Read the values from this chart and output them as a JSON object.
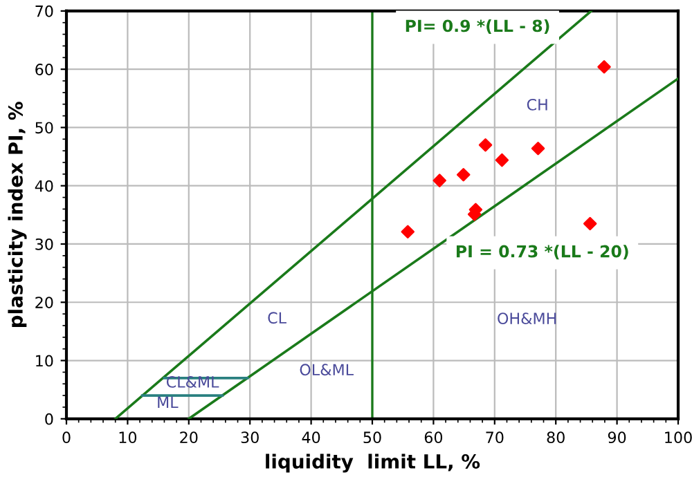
{
  "chart_data": {
    "type": "scatter",
    "xlabel": "liquidity  limit LL, %",
    "ylabel": "plasticity index PI, %",
    "xlim": [
      0,
      100
    ],
    "ylim": [
      0,
      70
    ],
    "xticks": [
      0,
      10,
      20,
      30,
      40,
      50,
      60,
      70,
      80,
      90,
      100
    ],
    "yticks": [
      0,
      10,
      20,
      30,
      40,
      50,
      60,
      70
    ],
    "grid": true,
    "series": [
      {
        "marker": "diamond",
        "color": "#ff0000",
        "x": [
          87.9,
          68.5,
          71.2,
          77.1,
          61.0,
          64.9,
          66.9,
          66.7,
          55.8,
          85.6
        ],
        "values": [
          60.4,
          47.0,
          44.4,
          46.4,
          40.9,
          41.9,
          35.9,
          35.1,
          32.1,
          33.5
        ]
      },
      {
        "type": "line",
        "name": "PI= 0.9 *(LL - 8)",
        "color": "#1a7a1a",
        "x": [
          8,
          85.8
        ],
        "values": [
          0,
          70
        ]
      },
      {
        "type": "line",
        "name": "PI = 0.73 *(LL - 20)",
        "color": "#1a7a1a",
        "x": [
          20,
          100
        ],
        "values": [
          0,
          58.4
        ]
      },
      {
        "type": "line",
        "color": "#2a8080",
        "x": [
          12.4,
          25.5
        ],
        "values": [
          4,
          4
        ]
      },
      {
        "type": "line",
        "color": "#2a8080",
        "x": [
          16,
          29.6
        ],
        "values": [
          7,
          7
        ]
      }
    ],
    "ref_lines": [
      {
        "axis": "x",
        "value": 50,
        "color": "#1a7a1a"
      }
    ],
    "annotations": [
      "CH",
      "CL",
      "OH&MH",
      "OL&ML",
      "CL&ML",
      "ML"
    ]
  }
}
